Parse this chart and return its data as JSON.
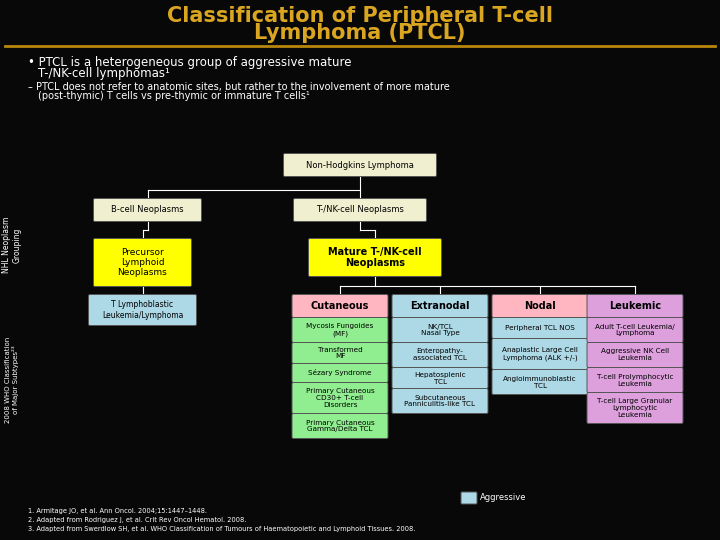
{
  "bg_color": "#080808",
  "title_color": "#DAA520",
  "separator_color": "#B8860B",
  "text_color": "#ffffff",
  "box_white_fill": "#f0f0d0",
  "box_yellow_fill": "#FFFF00",
  "box_yellow_text": "#000000",
  "box_pink_fill": "#FFB6C1",
  "box_blue_fill": "#ADD8E6",
  "box_green_fill": "#90EE90",
  "box_lavender_fill": "#DDA0DD",
  "box_text_color": "#000000",
  "aggressive_box_color": "#ADD8E6",
  "footnotes": [
    "1. Armitage JO, et al. Ann Oncol. 2004;15:1447–1448.",
    "2. Adapted from Rodriguez J, et al. Crit Rev Oncol Hematol. 2008.",
    "3. Adapted from Swerdlow SH, et al. WHO Classification of Tumours of Haematopoietic and Lymphoid Tissues. 2008."
  ]
}
